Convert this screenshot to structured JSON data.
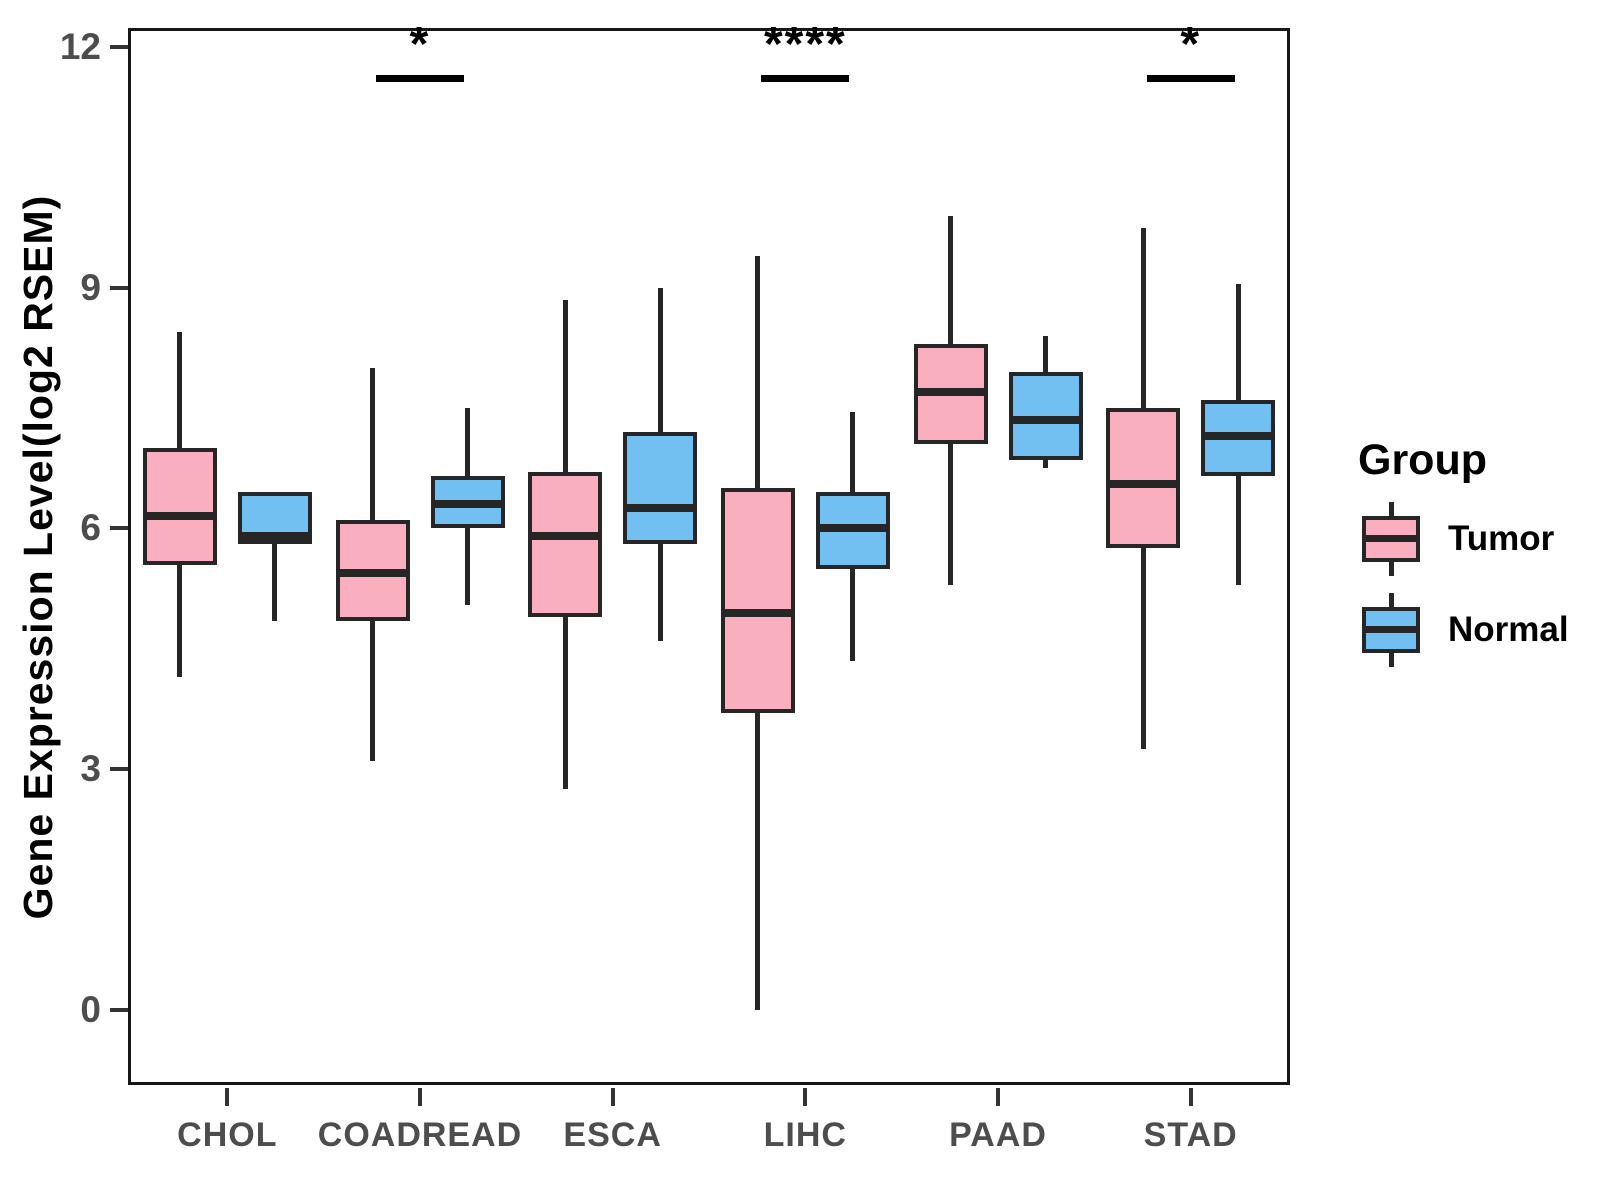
{
  "chart_data": {
    "type": "boxplot",
    "title": "",
    "ylabel": "Gene Expression Level(log2 RSEM)",
    "xlabel": "",
    "yticks": [
      0,
      3,
      6,
      9,
      12
    ],
    "ylim": [
      -0.9,
      12.2
    ],
    "grid": "off",
    "legend_position": "right",
    "categories": [
      "CHOL",
      "COADREAD",
      "ESCA",
      "LIHC",
      "PAAD",
      "STAD"
    ],
    "series": [
      {
        "name": "Tumor",
        "color": "#F9AFC0",
        "boxes": [
          {
            "min": 4.15,
            "q1": 5.55,
            "median": 6.15,
            "q3": 7.0,
            "max": 8.45
          },
          {
            "min": 3.1,
            "q1": 4.85,
            "median": 5.45,
            "q3": 6.1,
            "max": 8.0
          },
          {
            "min": 2.75,
            "q1": 4.9,
            "median": 5.9,
            "q3": 6.7,
            "max": 8.85
          },
          {
            "min": 0.0,
            "q1": 3.7,
            "median": 4.95,
            "q3": 6.5,
            "max": 9.4
          },
          {
            "min": 5.3,
            "q1": 7.05,
            "median": 7.7,
            "q3": 8.3,
            "max": 9.9
          },
          {
            "min": 3.25,
            "q1": 5.75,
            "median": 6.55,
            "q3": 7.5,
            "max": 9.75
          }
        ]
      },
      {
        "name": "Normal",
        "color": "#72BFF2",
        "boxes": [
          {
            "min": 4.85,
            "q1": 5.8,
            "median": 5.9,
            "q3": 6.45,
            "max": 6.45
          },
          {
            "min": 5.05,
            "q1": 6.0,
            "median": 6.3,
            "q3": 6.65,
            "max": 7.5
          },
          {
            "min": 4.6,
            "q1": 5.8,
            "median": 6.25,
            "q3": 7.2,
            "max": 9.0
          },
          {
            "min": 4.35,
            "q1": 5.5,
            "median": 6.0,
            "q3": 6.45,
            "max": 7.45
          },
          {
            "min": 6.75,
            "q1": 6.85,
            "median": 7.35,
            "q3": 7.95,
            "max": 8.4
          },
          {
            "min": 5.3,
            "q1": 6.65,
            "median": 7.15,
            "q3": 7.6,
            "max": 9.05
          }
        ]
      }
    ],
    "annotations": [
      {
        "category": "COADREAD",
        "label": "*",
        "bar_y": 11.65
      },
      {
        "category": "LIHC",
        "label": "****",
        "bar_y": 11.65
      },
      {
        "category": "STAD",
        "label": "*",
        "bar_y": 11.65
      }
    ],
    "legend": {
      "title": "Group",
      "items": [
        {
          "label": "Tumor",
          "color": "#F9AFC0"
        },
        {
          "label": "Normal",
          "color": "#72BFF2"
        }
      ]
    },
    "colors": {
      "box_border": "#262626",
      "panel_border": "#171717",
      "axis_tick": "#333333",
      "axis_text": "#4d4d4d",
      "axis_title": "#000000",
      "significance": "#000000"
    }
  }
}
